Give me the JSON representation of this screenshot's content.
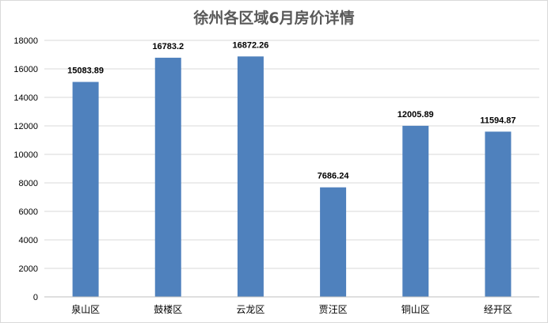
{
  "chart_data": {
    "type": "bar",
    "title": "徐州各区域6月房价详情",
    "xlabel": "",
    "ylabel": "",
    "categories": [
      "泉山区",
      "鼓楼区",
      "云龙区",
      "贾汪区",
      "铜山区",
      "经开区"
    ],
    "values": [
      15083.89,
      16783.2,
      16872.26,
      7686.24,
      12005.89,
      11594.87
    ],
    "data_labels": [
      "15083.89",
      "16783.2",
      "16872.26",
      "7686.24",
      "12005.89",
      "11594.87"
    ],
    "ylim": [
      0,
      18000
    ],
    "yticks": [
      "0",
      "2000",
      "4000",
      "6000",
      "8000",
      "10000",
      "12000",
      "14000",
      "16000",
      "18000"
    ],
    "grid": true,
    "legend": "none",
    "bar_color": "#4f81bd"
  }
}
